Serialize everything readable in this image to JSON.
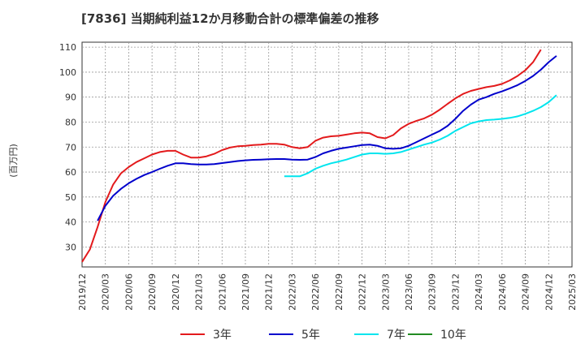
{
  "title": "[7836]  当期純利益12か月移動合計の標準偏差の推移",
  "ylabel": "(百万円)",
  "chart_data": {
    "type": "line",
    "title": "[7836]  当期純利益12か月移動合計の標準偏差の推移",
    "ylabel": "(百万円)",
    "ylim": [
      22,
      112
    ],
    "yticks": [
      30,
      40,
      50,
      60,
      70,
      80,
      90,
      100,
      110
    ],
    "xticks": [
      "2019/12",
      "2020/03",
      "2020/06",
      "2020/09",
      "2020/12",
      "2021/03",
      "2021/06",
      "2021/09",
      "2021/12",
      "2022/03",
      "2022/06",
      "2022/09",
      "2022/12",
      "2023/03",
      "2023/06",
      "2023/09",
      "2023/12",
      "2024/03",
      "2024/06",
      "2024/09",
      "2024/12",
      "2025/03"
    ],
    "grid": true,
    "legend_position": "bottom",
    "series": [
      {
        "name": "3年",
        "color": "#e31a1c",
        "start": "2019/12",
        "values": [
          24,
          29,
          38,
          48,
          55,
          59.5,
          62,
          64,
          65.5,
          67,
          68,
          68.5,
          68.5,
          67,
          65.8,
          65.8,
          66.3,
          67.3,
          68.8,
          69.8,
          70.3,
          70.5,
          70.8,
          71,
          71.3,
          71.3,
          71,
          70,
          69.5,
          70,
          72.5,
          73.8,
          74.3,
          74.5,
          75,
          75.5,
          75.8,
          75.5,
          74,
          73.5,
          74.8,
          77.5,
          79.3,
          80.5,
          81.5,
          83,
          85,
          87.3,
          89.5,
          91.3,
          92.5,
          93.3,
          94,
          94.5,
          95.3,
          96.7,
          98.5,
          100.8,
          104,
          109
        ]
      },
      {
        "name": "5年",
        "color": "#0000cc",
        "start": "2020/02",
        "values": [
          40.5,
          46.5,
          50.5,
          53.3,
          55.5,
          57.3,
          58.8,
          60,
          61.3,
          62.5,
          63.5,
          63.5,
          63.2,
          63,
          63,
          63.2,
          63.6,
          64,
          64.4,
          64.7,
          64.9,
          65,
          65.1,
          65.2,
          65.2,
          65,
          64.9,
          65,
          66,
          67.5,
          68.5,
          69.3,
          69.8,
          70.3,
          70.8,
          71,
          70.5,
          69.5,
          69.3,
          69.5,
          70.5,
          72,
          73.5,
          75,
          76.5,
          78.5,
          81.3,
          84.5,
          87,
          89,
          90,
          91.3,
          92.3,
          93.5,
          94.8,
          96.5,
          98.5,
          101,
          104,
          106.5
        ]
      },
      {
        "name": "7年",
        "color": "#00e5ee",
        "start": "2022/02",
        "values": [
          58.3,
          58.3,
          58.3,
          59.5,
          61.3,
          62.5,
          63.5,
          64.2,
          65,
          66,
          67,
          67.5,
          67.5,
          67.3,
          67.5,
          68,
          69,
          70,
          71,
          71.8,
          73,
          74.5,
          76.5,
          78,
          79.5,
          80.3,
          80.8,
          81,
          81.3,
          81.7,
          82.3,
          83.3,
          84.5,
          86,
          88,
          90.8
        ]
      },
      {
        "name": "10年",
        "color": "#228b22",
        "start": "2024/12",
        "values": []
      }
    ]
  }
}
